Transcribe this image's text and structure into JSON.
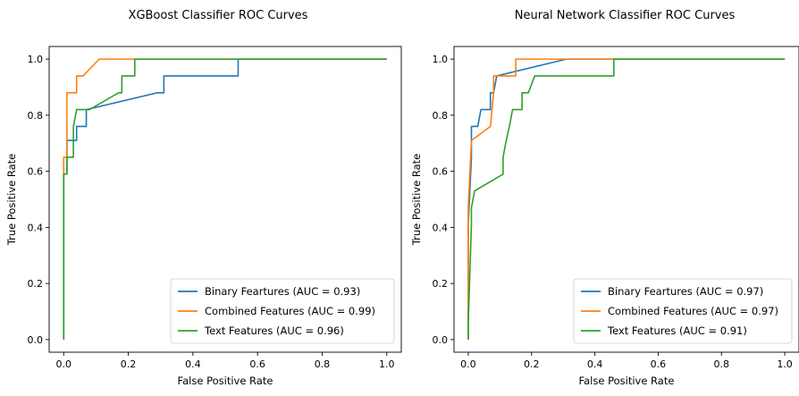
{
  "chart_data": [
    {
      "type": "line",
      "title": "XGBoost Classifier ROC Curves",
      "xlabel": "False Positive Rate",
      "ylabel": "True Positive Rate",
      "xlim": [
        0,
        1
      ],
      "ylim": [
        0,
        1
      ],
      "xticks": [
        "0.0",
        "0.2",
        "0.4",
        "0.6",
        "0.8",
        "1.0"
      ],
      "yticks": [
        "0.0",
        "0.2",
        "0.4",
        "0.6",
        "0.8",
        "1.0"
      ],
      "legend_position": "bottom-right",
      "grid": false,
      "series": [
        {
          "name": "Binary Feartures (AUC = 0.93)",
          "color": "#1f77b4",
          "points": [
            [
              0,
              0
            ],
            [
              0,
              0.59
            ],
            [
              0.01,
              0.59
            ],
            [
              0.01,
              0.71
            ],
            [
              0.04,
              0.71
            ],
            [
              0.04,
              0.76
            ],
            [
              0.07,
              0.76
            ],
            [
              0.07,
              0.82
            ],
            [
              0.29,
              0.88
            ],
            [
              0.31,
              0.88
            ],
            [
              0.31,
              0.94
            ],
            [
              0.54,
              0.94
            ],
            [
              0.54,
              1.0
            ],
            [
              1.0,
              1.0
            ]
          ]
        },
        {
          "name": "Combined Features (AUC = 0.99)",
          "color": "#ff7f0e",
          "points": [
            [
              0,
              0
            ],
            [
              0,
              0.65
            ],
            [
              0.01,
              0.65
            ],
            [
              0.01,
              0.88
            ],
            [
              0.04,
              0.88
            ],
            [
              0.04,
              0.94
            ],
            [
              0.06,
              0.94
            ],
            [
              0.11,
              1.0
            ],
            [
              1.0,
              1.0
            ]
          ]
        },
        {
          "name": "Text Features (AUC = 0.96)",
          "color": "#2ca02c",
          "points": [
            [
              0,
              0
            ],
            [
              0,
              0.59
            ],
            [
              0.01,
              0.59
            ],
            [
              0.01,
              0.65
            ],
            [
              0.03,
              0.65
            ],
            [
              0.03,
              0.76
            ],
            [
              0.04,
              0.82
            ],
            [
              0.08,
              0.82
            ],
            [
              0.17,
              0.88
            ],
            [
              0.18,
              0.88
            ],
            [
              0.18,
              0.94
            ],
            [
              0.22,
              0.94
            ],
            [
              0.22,
              1.0
            ],
            [
              1.0,
              1.0
            ]
          ]
        }
      ]
    },
    {
      "type": "line",
      "title": "Neural Network Classifier ROC Curves",
      "xlabel": "False Positive Rate",
      "ylabel": "True Positive Rate",
      "xlim": [
        0,
        1
      ],
      "ylim": [
        0,
        1
      ],
      "xticks": [
        "0.0",
        "0.2",
        "0.4",
        "0.6",
        "0.8",
        "1.0"
      ],
      "yticks": [
        "0.0",
        "0.2",
        "0.4",
        "0.6",
        "0.8",
        "1.0"
      ],
      "legend_position": "bottom-right",
      "grid": false,
      "series": [
        {
          "name": "Binary Feartures (AUC = 0.97)",
          "color": "#1f77b4",
          "points": [
            [
              0,
              0
            ],
            [
              0,
              0.41
            ],
            [
              0.01,
              0.65
            ],
            [
              0.01,
              0.76
            ],
            [
              0.03,
              0.76
            ],
            [
              0.04,
              0.82
            ],
            [
              0.07,
              0.82
            ],
            [
              0.07,
              0.88
            ],
            [
              0.08,
              0.88
            ],
            [
              0.09,
              0.94
            ],
            [
              0.31,
              1.0
            ],
            [
              1.0,
              1.0
            ]
          ]
        },
        {
          "name": "Combined Features (AUC = 0.97)",
          "color": "#ff7f0e",
          "points": [
            [
              0,
              0
            ],
            [
              0,
              0.47
            ],
            [
              0.01,
              0.71
            ],
            [
              0.07,
              0.76
            ],
            [
              0.08,
              0.88
            ],
            [
              0.08,
              0.94
            ],
            [
              0.15,
              0.94
            ],
            [
              0.15,
              1.0
            ],
            [
              1.0,
              1.0
            ]
          ]
        },
        {
          "name": "Text Features (AUC = 0.91)",
          "color": "#2ca02c",
          "points": [
            [
              0,
              0
            ],
            [
              0,
              0.06
            ],
            [
              0.01,
              0.41
            ],
            [
              0.01,
              0.47
            ],
            [
              0.02,
              0.53
            ],
            [
              0.11,
              0.59
            ],
            [
              0.11,
              0.65
            ],
            [
              0.12,
              0.71
            ],
            [
              0.13,
              0.76
            ],
            [
              0.14,
              0.82
            ],
            [
              0.17,
              0.82
            ],
            [
              0.17,
              0.88
            ],
            [
              0.19,
              0.88
            ],
            [
              0.21,
              0.94
            ],
            [
              0.46,
              0.94
            ],
            [
              0.46,
              1.0
            ],
            [
              1.0,
              1.0
            ]
          ]
        }
      ]
    }
  ]
}
